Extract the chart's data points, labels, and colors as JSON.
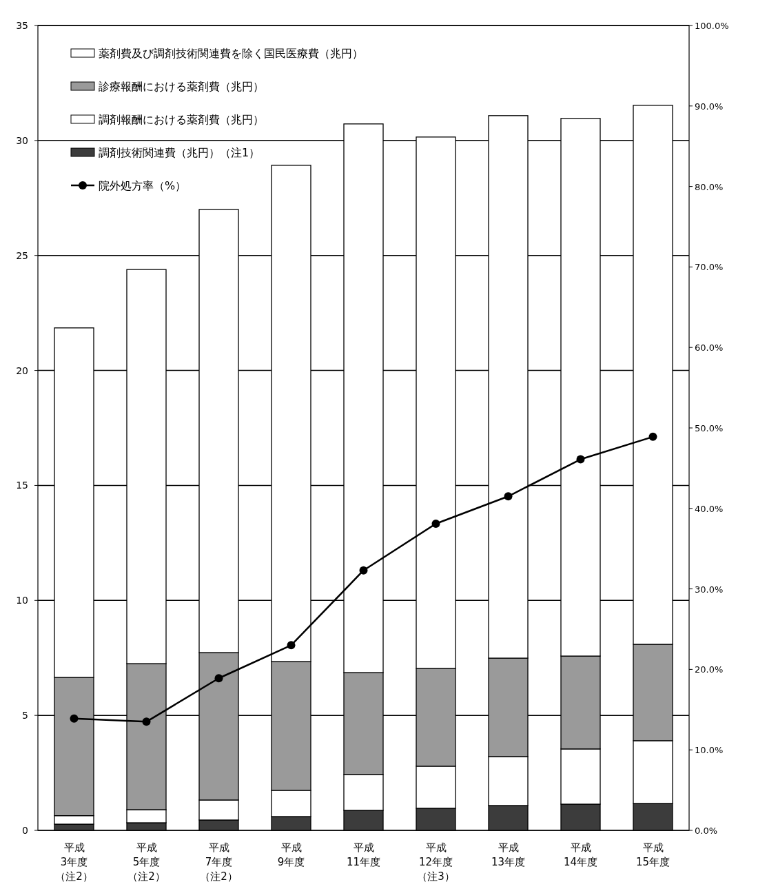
{
  "chart_data": {
    "type": "bar",
    "stacked": true,
    "categories": [
      "平成\n3年度（注2）",
      "平成\n5年度（注2）",
      "平成\n7年度（注2）",
      "平成\n9年度",
      "平成\n11年度",
      "平成\n12年度（注3）",
      "平成\n13年度",
      "平成\n14年度",
      "平成\n15年度"
    ],
    "series": [
      {
        "name": "調剤技術関連費（兆円）（注1）",
        "color": "#3c3c3c",
        "values": [
          0.27,
          0.33,
          0.45,
          0.6,
          0.87,
          0.96,
          1.08,
          1.14,
          1.17
        ]
      },
      {
        "name": "調剤報酬における薬剤費（兆円）",
        "color": "#ffffff",
        "values": [
          0.37,
          0.57,
          0.87,
          1.14,
          1.56,
          1.83,
          2.13,
          2.4,
          2.73
        ]
      },
      {
        "name": "診療報酬における薬剤費（兆円）",
        "color": "#9a9a9a",
        "values": [
          6.01,
          6.35,
          6.41,
          5.6,
          4.43,
          4.25,
          4.28,
          4.04,
          4.19
        ]
      },
      {
        "name": "薬剤費及び調剤技術関連費を除く国民医療費（兆円）",
        "color": "#ffffff",
        "values": [
          15.2,
          17.14,
          19.27,
          21.58,
          23.86,
          23.11,
          23.59,
          23.38,
          23.44
        ]
      },
      {
        "name": "院外処方率（%）",
        "type": "line",
        "axis": "y2",
        "color": "#000000",
        "marker": "circle",
        "values": [
          13.9,
          13.5,
          18.9,
          23.0,
          32.3,
          38.1,
          41.5,
          46.1,
          48.9
        ]
      }
    ],
    "ylim": [
      0,
      35
    ],
    "yticks": [
      0,
      5,
      10,
      15,
      20,
      25,
      30,
      35
    ],
    "y2lim": [
      0,
      100
    ],
    "y2ticks": [
      {
        "value": 0,
        "label": "0.0%"
      },
      {
        "value": 10,
        "label": "10.0%"
      },
      {
        "value": 20,
        "label": "20.0%"
      },
      {
        "value": 30,
        "label": "30.0%"
      },
      {
        "value": 40,
        "label": "40.0%"
      },
      {
        "value": 50,
        "label": "50.0%"
      },
      {
        "value": 60,
        "label": "60.0%"
      },
      {
        "value": 70,
        "label": "70.0%"
      },
      {
        "value": 80,
        "label": "80.0%"
      },
      {
        "value": 90,
        "label": "90.0%"
      },
      {
        "value": 100,
        "label": "100.0%"
      }
    ],
    "grid": "y",
    "legend": "top left"
  }
}
